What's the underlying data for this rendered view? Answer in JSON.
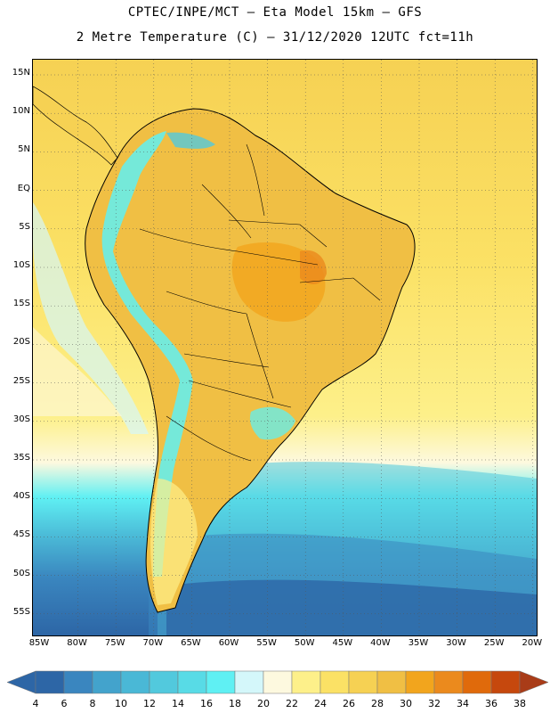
{
  "header": {
    "line1": "CPTEC/INPE/MCT –  Eta Model 15km – GFS",
    "line2": "2 Metre Temperature (C) – 31/12/2020 12UTC fct=11h"
  },
  "map": {
    "lat_labels": [
      "15N",
      "10N",
      "5N",
      "EQ",
      "5S",
      "10S",
      "15S",
      "20S",
      "25S",
      "30S",
      "35S",
      "40S",
      "45S",
      "50S",
      "55S"
    ],
    "lon_labels": [
      "85W",
      "80W",
      "75W",
      "70W",
      "65W",
      "60W",
      "55W",
      "50W",
      "45W",
      "40W",
      "35W",
      "30W",
      "25W",
      "20W"
    ]
  },
  "legend": {
    "labels": [
      "4",
      "6",
      "8",
      "10",
      "12",
      "14",
      "16",
      "18",
      "20",
      "22",
      "24",
      "26",
      "28",
      "30",
      "32",
      "34",
      "36",
      "38"
    ],
    "colors": [
      "#2d66a6",
      "#3a86bf",
      "#43a3cc",
      "#4ab8d6",
      "#52c9dd",
      "#58dbe6",
      "#5ff0f3",
      "#d4f7fa",
      "#fdf9df",
      "#fdf08a",
      "#fbe165",
      "#f6d153",
      "#f0bf44",
      "#f2a51d",
      "#eb8a1d",
      "#e06a0b",
      "#c6480d",
      "#a93c18"
    ],
    "underflow_color": "#2d66a6",
    "overflow_color": "#a93c18"
  }
}
